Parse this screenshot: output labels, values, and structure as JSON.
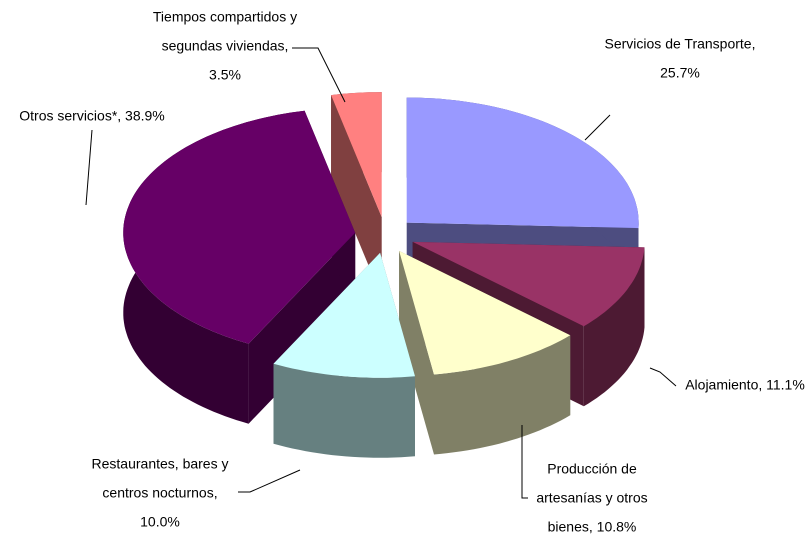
{
  "chart_data": {
    "type": "pie3d",
    "labels": [
      [
        "Servicios de Transporte,",
        "25.7%"
      ],
      [
        "Alojamiento, 11.1%"
      ],
      [
        "Producción de",
        "artesanías y otros",
        "bienes, 10.8%"
      ],
      [
        "Restaurantes, bares y",
        "centros nocturnos,",
        "10.0%"
      ],
      [
        "Otros servicios*, 38.9%"
      ],
      [
        "Tiempos compartidos y",
        "segundas viviendas,",
        "3.5%"
      ]
    ],
    "values": [
      25.7,
      11.1,
      10.8,
      10.0,
      38.9,
      3.5
    ],
    "colors": [
      "#9999ff",
      "#993366",
      "#ffffcc",
      "#ccffff",
      "#660066",
      "#ff8080"
    ]
  }
}
